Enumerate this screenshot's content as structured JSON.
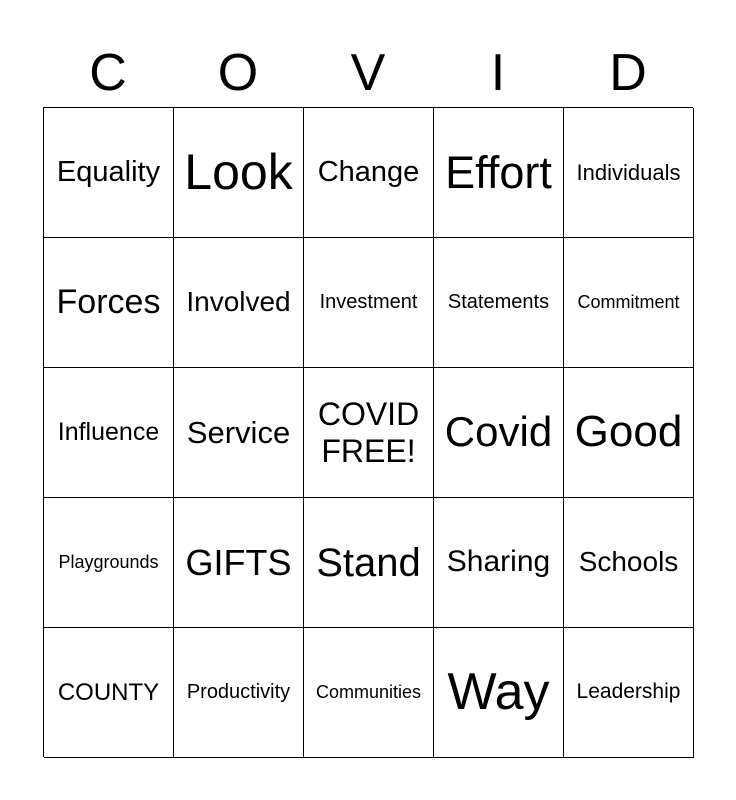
{
  "header": [
    "C",
    "O",
    "V",
    "I",
    "D"
  ],
  "cells": [
    "Equality",
    "Look",
    "Change",
    "Effort",
    "Individuals",
    "Forces",
    "Involved",
    "Investment",
    "Statements",
    "Commitment",
    "Influence",
    "Service",
    "COVID\nFREE!",
    "Covid",
    "Good",
    "Playgrounds",
    "GIFTS",
    "Stand",
    "Sharing",
    "Schools",
    "COUNTY",
    "Productivity",
    "Communities",
    "Way",
    "Leadership"
  ]
}
